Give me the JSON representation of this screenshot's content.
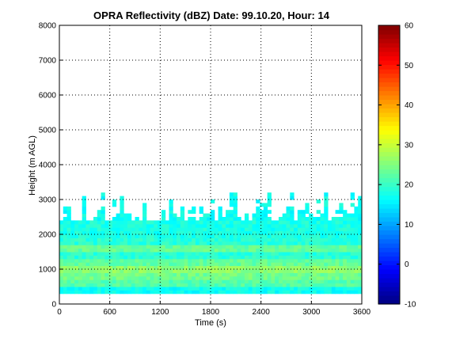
{
  "chart_data": {
    "type": "heatmap",
    "title": "OPRA Reflectivity (dBZ)  Date: 99.10.20, Hour: 14",
    "xlabel": "Time (s)",
    "ylabel": "Height (m AGL)",
    "xlim": [
      0,
      3600
    ],
    "ylim": [
      0,
      8000
    ],
    "x_ticks": [
      "0",
      "600",
      "1200",
      "1800",
      "2400",
      "3000",
      "3600"
    ],
    "y_ticks": [
      "0",
      "1000",
      "2000",
      "3000",
      "4000",
      "5000",
      "6000",
      "7000",
      "8000"
    ],
    "grid": true,
    "colormap": "jet",
    "colorbar": {
      "range": [
        -10,
        60
      ],
      "ticks": [
        "-10",
        "0",
        "10",
        "20",
        "30",
        "40",
        "50",
        "60"
      ]
    },
    "height_profile": [
      {
        "height": 300,
        "dbz": 17
      },
      {
        "height": 500,
        "dbz": 22
      },
      {
        "height": 700,
        "dbz": 24
      },
      {
        "height": 900,
        "dbz": 26
      },
      {
        "height": 1100,
        "dbz": 23
      },
      {
        "height": 1300,
        "dbz": 19
      },
      {
        "height": 1500,
        "dbz": 23
      },
      {
        "height": 1700,
        "dbz": 19
      },
      {
        "height": 1900,
        "dbz": 18
      },
      {
        "height": 2100,
        "dbz": 18
      },
      {
        "height": 2300,
        "dbz": 18
      }
    ],
    "echo_top_m": [
      2400,
      3300
    ]
  }
}
